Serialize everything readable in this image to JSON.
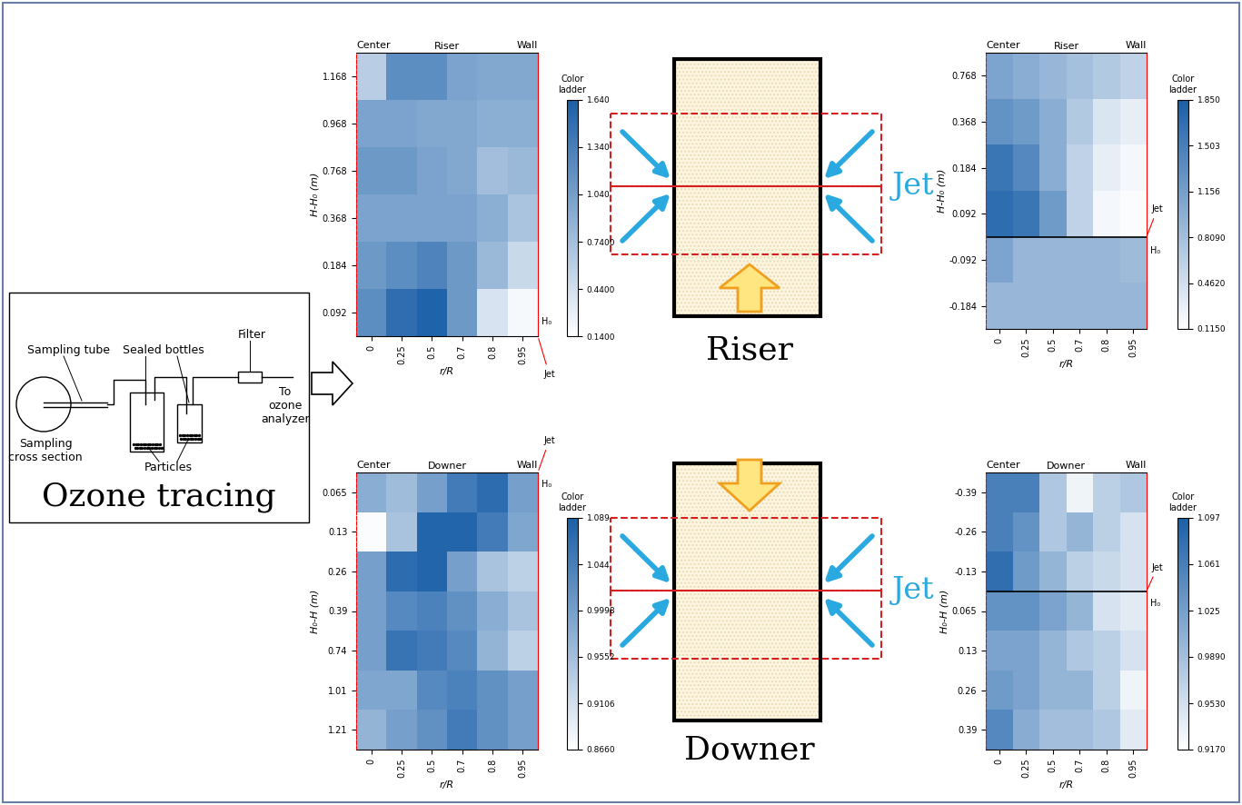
{
  "chart_data": [
    {
      "type": "heatmap",
      "title": "Riser",
      "left_label": "Center",
      "right_label": "Wall",
      "xlabel": "r/R",
      "ylabel": "H-H₀ (m)",
      "categories": [
        "0",
        "0.25",
        "0.5",
        "0.7",
        "0.8",
        "0.95"
      ],
      "y_categories": [
        "1.168",
        "0.968",
        "0.768",
        "0.368",
        "0.184",
        "0.092"
      ],
      "cells": [
        [
          0.6,
          1.2,
          1.2,
          1.0,
          0.95,
          0.95
        ],
        [
          1.0,
          1.0,
          0.95,
          0.95,
          0.9,
          0.9
        ],
        [
          1.1,
          1.1,
          1.0,
          0.95,
          0.75,
          0.8
        ],
        [
          1.0,
          1.0,
          1.0,
          1.0,
          0.9,
          0.7
        ],
        [
          1.1,
          1.2,
          1.3,
          1.1,
          0.8,
          0.5
        ],
        [
          1.2,
          1.5,
          1.6,
          1.1,
          0.4,
          0.2
        ]
      ],
      "colorbar_title": "Color\nladder",
      "colorbar_range": [
        0.14,
        1.64
      ],
      "colorbar_ticks": [
        {
          "value": 0.14,
          "label": "0.1400"
        },
        {
          "value": 0.44,
          "label": "0.4400"
        },
        {
          "value": 0.74,
          "label": "0.7400"
        },
        {
          "value": 1.04,
          "label": "1.040"
        },
        {
          "value": 1.34,
          "label": "1.340"
        },
        {
          "value": 1.64,
          "label": "1.640"
        }
      ],
      "h0": {
        "label": "H₀",
        "y": 0
      },
      "jet_label": "Jet"
    },
    {
      "type": "heatmap",
      "title": "Riser",
      "left_label": "Center",
      "right_label": "Wall",
      "xlabel": "r/R",
      "ylabel": "H-H₀ (m)",
      "categories": [
        "0",
        "0.25",
        "0.5",
        "0.7",
        "0.8",
        "0.95"
      ],
      "y_categories": [
        "0.768",
        "0.368",
        "0.184",
        "0.092",
        "-0.092",
        "-0.184"
      ],
      "cells": [
        [
          1.1,
          1.0,
          0.9,
          0.8,
          0.7,
          0.6
        ],
        [
          1.3,
          1.2,
          1.0,
          0.7,
          0.4,
          0.3
        ],
        [
          1.6,
          1.4,
          1.0,
          0.6,
          0.3,
          0.2
        ],
        [
          1.7,
          1.6,
          1.2,
          0.6,
          0.2,
          0.15
        ],
        [
          1.1,
          0.9,
          0.9,
          0.9,
          0.9,
          0.85
        ],
        [
          0.9,
          0.9,
          0.9,
          0.9,
          0.9,
          0.9
        ]
      ],
      "colorbar_title": "Color\nladder",
      "colorbar_range": [
        0.115,
        1.85
      ],
      "colorbar_ticks": [
        {
          "value": 0.115,
          "label": "0.1150"
        },
        {
          "value": 0.462,
          "label": "0.4620"
        },
        {
          "value": 0.809,
          "label": "0.8090"
        },
        {
          "value": 1.156,
          "label": "1.156"
        },
        {
          "value": 1.503,
          "label": "1.503"
        },
        {
          "value": 1.85,
          "label": "1.850"
        }
      ],
      "h0": {
        "label": "H₀",
        "y": 0
      },
      "jet_label": "Jet"
    },
    {
      "type": "heatmap",
      "title": "Downer",
      "left_label": "Center",
      "right_label": "Wall",
      "xlabel": "r/R",
      "ylabel": "H₀-H (m)",
      "categories": [
        "0",
        "0.25",
        "0.5",
        "0.7",
        "0.8",
        "0.95"
      ],
      "y_categories": [
        "0.065",
        "0.13",
        "0.26",
        "0.39",
        "0.74",
        "1.01",
        "1.21"
      ],
      "cells": [
        [
          0.98,
          0.96,
          1.0,
          1.05,
          1.07,
          1.0
        ],
        [
          0.87,
          0.95,
          1.08,
          1.08,
          1.05,
          0.99
        ],
        [
          1.0,
          1.07,
          1.08,
          1.0,
          0.95,
          0.93
        ],
        [
          1.0,
          1.03,
          1.04,
          1.02,
          0.98,
          0.95
        ],
        [
          1.0,
          1.06,
          1.05,
          1.03,
          0.97,
          0.93
        ],
        [
          0.99,
          0.99,
          1.03,
          1.04,
          1.02,
          1.0
        ],
        [
          0.97,
          1.0,
          1.02,
          1.05,
          1.02,
          1.0
        ]
      ],
      "colorbar_title": "Color\nladder",
      "colorbar_range": [
        0.866,
        1.089
      ],
      "colorbar_ticks": [
        {
          "value": 0.866,
          "label": "0.8660"
        },
        {
          "value": 0.9106,
          "label": "0.9106"
        },
        {
          "value": 0.9552,
          "label": "0.9552"
        },
        {
          "value": 0.9998,
          "label": "0.9998"
        },
        {
          "value": 1.044,
          "label": "1.044"
        },
        {
          "value": 1.089,
          "label": "1.089"
        }
      ],
      "h0": {
        "label": "H₀",
        "y": 0
      },
      "jet_label": "Jet"
    },
    {
      "type": "heatmap",
      "title": "Downer",
      "left_label": "Center",
      "right_label": "Wall",
      "xlabel": "r/R",
      "ylabel": "H₀-H (m)",
      "categories": [
        "0",
        "0.25",
        "0.5",
        "0.7",
        "0.8",
        "0.95"
      ],
      "y_categories": [
        "-0.39",
        "-0.26",
        "-0.13",
        "0.065",
        "0.13",
        "0.26",
        "0.39"
      ],
      "cells": [
        [
          1.06,
          1.06,
          0.98,
          0.93,
          0.97,
          0.98
        ],
        [
          1.06,
          1.04,
          0.98,
          1.0,
          0.97,
          0.95
        ],
        [
          1.08,
          1.03,
          1.0,
          0.97,
          0.96,
          0.95
        ],
        [
          1.04,
          1.04,
          1.02,
          1.0,
          0.95,
          0.94
        ],
        [
          1.02,
          1.02,
          1.0,
          0.98,
          0.97,
          0.95
        ],
        [
          1.03,
          1.02,
          1.0,
          1.0,
          0.97,
          0.93
        ],
        [
          1.05,
          1.01,
          0.99,
          0.99,
          0.98,
          0.94
        ]
      ],
      "colorbar_title": "Color\nladder",
      "colorbar_range": [
        0.917,
        1.097
      ],
      "colorbar_ticks": [
        {
          "value": 0.917,
          "label": "0.9170"
        },
        {
          "value": 0.953,
          "label": "0.9530"
        },
        {
          "value": 0.989,
          "label": "0.9890"
        },
        {
          "value": 1.025,
          "label": "1.025"
        },
        {
          "value": 1.061,
          "label": "1.061"
        },
        {
          "value": 1.097,
          "label": "1.097"
        }
      ],
      "h0": {
        "label": "H₀",
        "y": 0
      },
      "jet_label": "Jet"
    }
  ],
  "diagram": {
    "ozone_tracing": {
      "title": "Ozone tracing",
      "labels": {
        "sampling_tube": "Sampling tube",
        "sealed_bottles": "Sealed bottles",
        "filter": "Filter",
        "analyzer": "To\nozone\nanalyzer",
        "cross_section": "Sampling\ncross section",
        "particles": "Particles"
      }
    },
    "riser": {
      "label": "Riser",
      "jet": "Jet"
    },
    "downer": {
      "label": "Downer",
      "jet": "Jet"
    }
  }
}
